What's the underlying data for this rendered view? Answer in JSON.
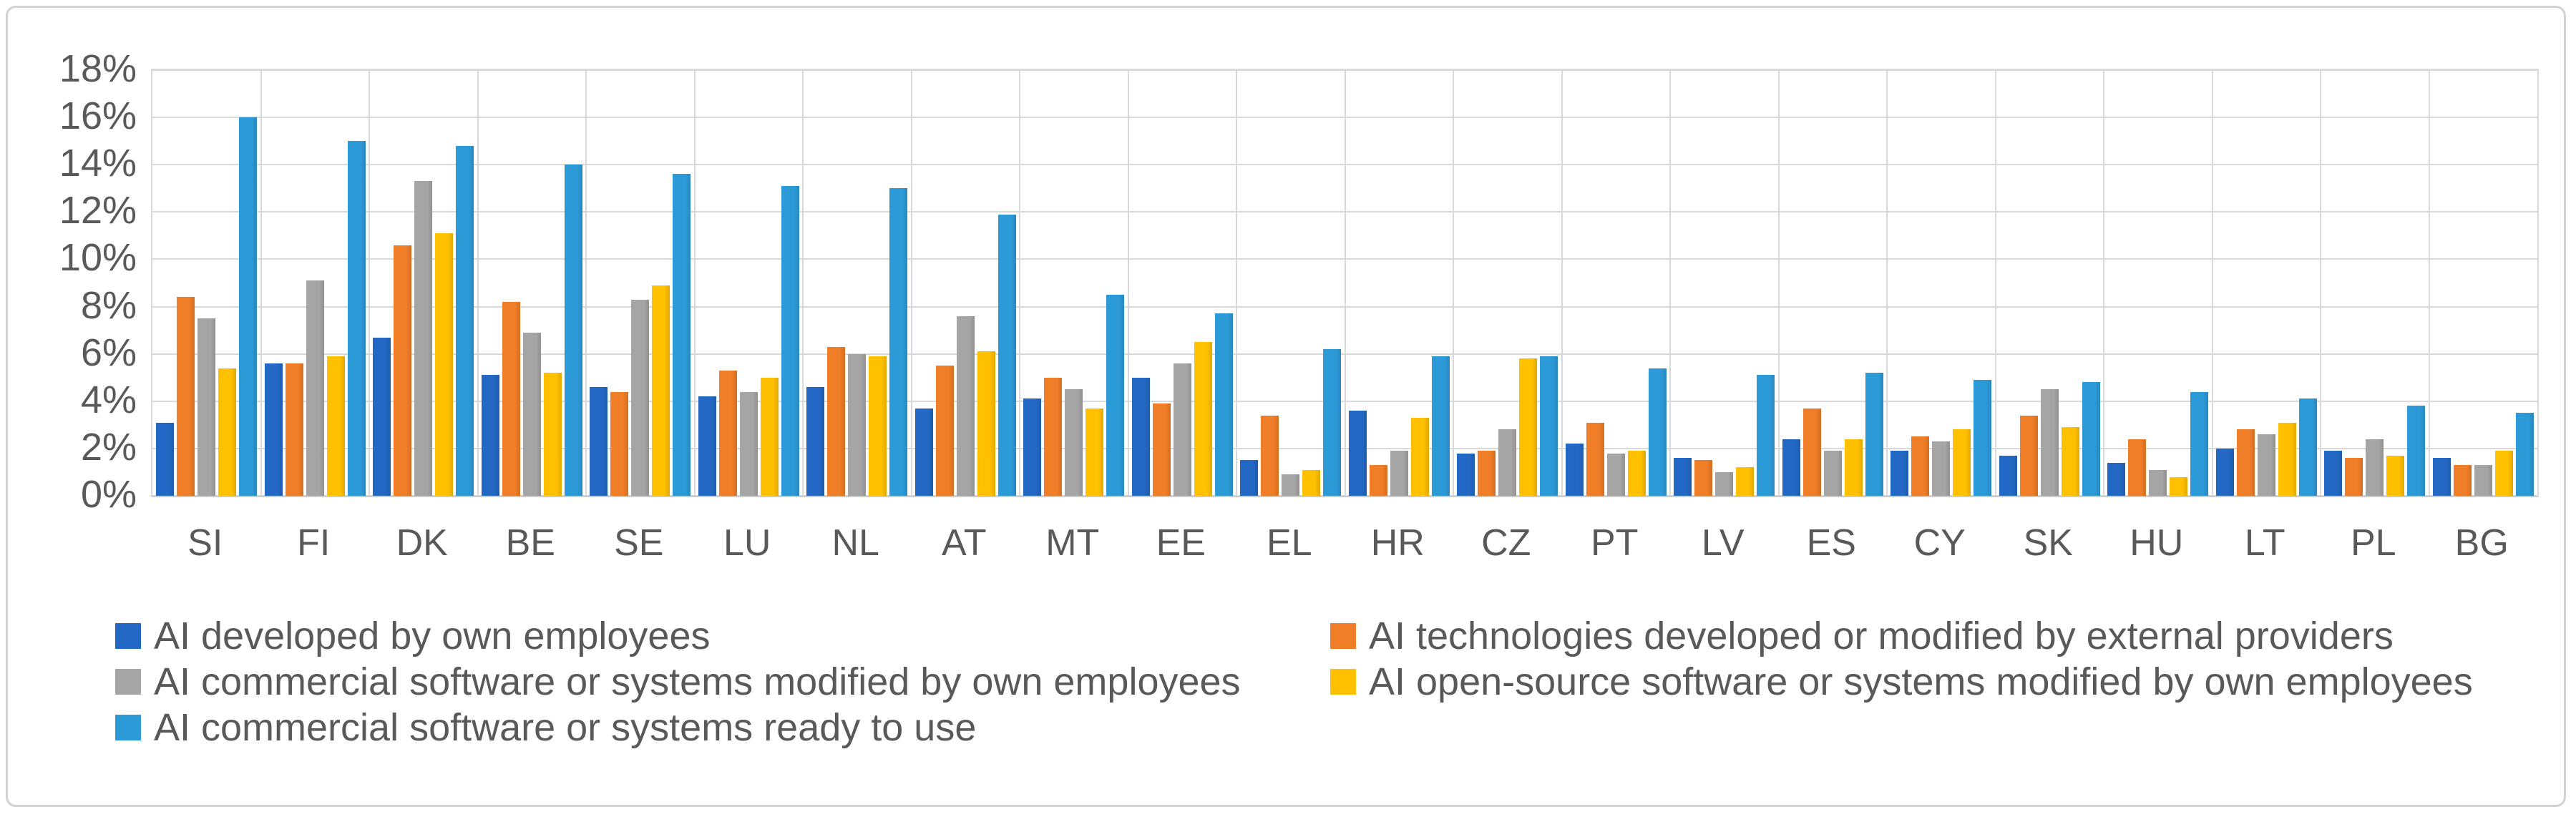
{
  "chart_data": {
    "type": "bar",
    "title": "",
    "xlabel": "",
    "ylabel": "",
    "ylim": [
      0,
      18
    ],
    "ytick_step": 2,
    "ytick_format": "percent",
    "grid": true,
    "legend_position": "bottom",
    "categories": [
      "SI",
      "FI",
      "DK",
      "BE",
      "SE",
      "LU",
      "NL",
      "AT",
      "MT",
      "EE",
      "EL",
      "HR",
      "CZ",
      "PT",
      "LV",
      "ES",
      "CY",
      "SK",
      "HU",
      "LT",
      "PL",
      "BG"
    ],
    "series": [
      {
        "name": "AI developed by own employees",
        "color": "#2368c4",
        "values": [
          3.1,
          5.6,
          6.7,
          5.1,
          4.6,
          4.2,
          4.6,
          3.7,
          4.1,
          5.0,
          1.5,
          3.6,
          1.8,
          2.2,
          1.6,
          2.4,
          1.9,
          1.7,
          1.4,
          2.0,
          1.9,
          1.6
        ]
      },
      {
        "name": "AI technologies developed or modified by external providers",
        "color": "#f07d27",
        "values": [
          8.4,
          5.6,
          10.6,
          8.2,
          4.4,
          5.3,
          6.3,
          5.5,
          5.0,
          3.9,
          3.4,
          1.3,
          1.9,
          3.1,
          1.5,
          3.7,
          2.5,
          3.4,
          2.4,
          2.8,
          1.6,
          1.3
        ]
      },
      {
        "name": "AI commercial software or systems modified by own employees",
        "color": "#a5a5a5",
        "values": [
          7.5,
          9.1,
          13.3,
          6.9,
          8.3,
          4.4,
          6.0,
          7.6,
          4.5,
          5.6,
          0.9,
          1.9,
          2.8,
          1.8,
          1.0,
          1.9,
          2.3,
          4.5,
          1.1,
          2.6,
          2.4,
          1.3
        ]
      },
      {
        "name": "AI open-source software or systems modified by own employees",
        "color": "#ffc000",
        "values": [
          5.4,
          5.9,
          11.1,
          5.2,
          8.9,
          5.0,
          5.9,
          6.1,
          3.7,
          6.5,
          1.1,
          3.3,
          5.8,
          1.9,
          1.2,
          2.4,
          2.8,
          2.9,
          0.8,
          3.1,
          1.7,
          1.9
        ]
      },
      {
        "name": "AI commercial software or systems ready to use",
        "color": "#2d9ad8",
        "values": [
          16.0,
          15.0,
          14.8,
          14.0,
          13.6,
          13.1,
          13.0,
          11.9,
          8.5,
          7.7,
          6.2,
          5.9,
          5.9,
          5.4,
          5.1,
          5.2,
          4.9,
          4.8,
          4.4,
          4.1,
          3.8,
          3.5
        ]
      }
    ],
    "y_tick_labels": [
      "0%",
      "2%",
      "4%",
      "6%",
      "8%",
      "10%",
      "12%",
      "14%",
      "16%",
      "18%"
    ]
  },
  "colors": {
    "grid": "#d9d9d9",
    "axis_text": "#595959",
    "frame_border": "#d2d2d2",
    "background": "#ffffff"
  }
}
